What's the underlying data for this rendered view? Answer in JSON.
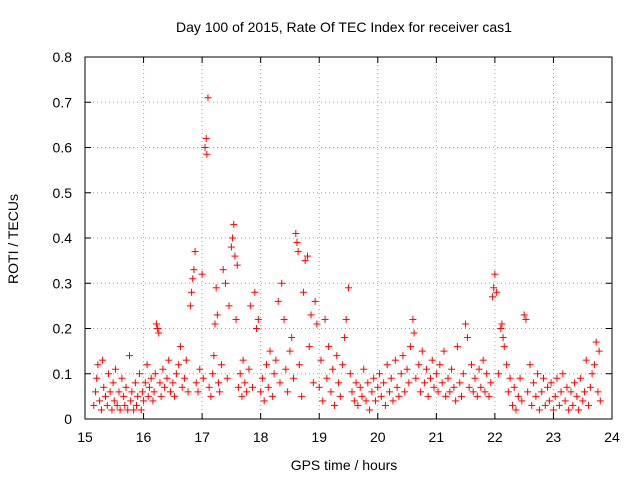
{
  "chart_data": {
    "type": "scatter",
    "title": "Day 100 of 2015, Rate Of TEC Index for receiver cas1",
    "xlabel": "GPS time / hours",
    "ylabel": "ROTI / TECUs",
    "xlim": [
      15,
      24
    ],
    "ylim": [
      0,
      0.8
    ],
    "xticks": [
      "15",
      "16",
      "17",
      "18",
      "19",
      "20",
      "21",
      "22",
      "23",
      "24"
    ],
    "yticks": [
      "0",
      "0.1",
      "0.2",
      "0.3",
      "0.4",
      "0.5",
      "0.6",
      "0.7",
      "0.8"
    ],
    "grid": true,
    "marker": "+",
    "color": "#ff0000",
    "series": [
      {
        "name": "",
        "points": [
          [
            15.15,
            0.03
          ],
          [
            15.18,
            0.06
          ],
          [
            15.2,
            0.09
          ],
          [
            15.22,
            0.12
          ],
          [
            15.25,
            0.04
          ],
          [
            15.28,
            0.02
          ],
          [
            15.3,
            0.13
          ],
          [
            15.32,
            0.07
          ],
          [
            15.35,
            0.05
          ],
          [
            15.38,
            0.03
          ],
          [
            15.4,
            0.1
          ],
          [
            15.43,
            0.06
          ],
          [
            15.46,
            0.02
          ],
          [
            15.48,
            0.08
          ],
          [
            15.5,
            0.04
          ],
          [
            15.52,
            0.11
          ],
          [
            15.55,
            0.03
          ],
          [
            15.58,
            0.06
          ],
          [
            15.6,
            0.02
          ],
          [
            15.63,
            0.09
          ],
          [
            15.66,
            0.05
          ],
          [
            15.68,
            0.03
          ],
          [
            15.7,
            0.07
          ],
          [
            15.73,
            0.02
          ],
          [
            15.76,
            0.14
          ],
          [
            15.78,
            0.04
          ],
          [
            15.8,
            0.06
          ],
          [
            15.83,
            0.02
          ],
          [
            15.86,
            0.08
          ],
          [
            15.88,
            0.03
          ],
          [
            15.9,
            0.05
          ],
          [
            15.93,
            0.1
          ],
          [
            15.96,
            0.02
          ],
          [
            15.98,
            0.06
          ],
          [
            16.0,
            0.04
          ],
          [
            16.03,
            0.08
          ],
          [
            16.06,
            0.12
          ],
          [
            16.08,
            0.05
          ],
          [
            16.1,
            0.07
          ],
          [
            16.13,
            0.09
          ],
          [
            16.16,
            0.04
          ],
          [
            16.18,
            0.06
          ],
          [
            16.2,
            0.1
          ],
          [
            16.22,
            0.21
          ],
          [
            16.24,
            0.2
          ],
          [
            16.26,
            0.19
          ],
          [
            16.28,
            0.08
          ],
          [
            16.3,
            0.05
          ],
          [
            16.33,
            0.11
          ],
          [
            16.36,
            0.07
          ],
          [
            16.4,
            0.09
          ],
          [
            16.43,
            0.13
          ],
          [
            16.46,
            0.06
          ],
          [
            16.5,
            0.08
          ],
          [
            16.53,
            0.05
          ],
          [
            16.56,
            0.1
          ],
          [
            16.6,
            0.12
          ],
          [
            16.63,
            0.16
          ],
          [
            16.66,
            0.07
          ],
          [
            16.7,
            0.09
          ],
          [
            16.73,
            0.13
          ],
          [
            16.76,
            0.06
          ],
          [
            16.8,
            0.25
          ],
          [
            16.82,
            0.28
          ],
          [
            16.84,
            0.31
          ],
          [
            16.86,
            0.33
          ],
          [
            16.88,
            0.37
          ],
          [
            16.9,
            0.08
          ],
          [
            16.93,
            0.06
          ],
          [
            16.96,
            0.11
          ],
          [
            17.0,
            0.32
          ],
          [
            17.02,
            0.09
          ],
          [
            17.05,
            0.6
          ],
          [
            17.07,
            0.62
          ],
          [
            17.08,
            0.585
          ],
          [
            17.1,
            0.71
          ],
          [
            17.12,
            0.07
          ],
          [
            17.15,
            0.05
          ],
          [
            17.18,
            0.1
          ],
          [
            17.2,
            0.14
          ],
          [
            17.22,
            0.21
          ],
          [
            17.24,
            0.29
          ],
          [
            17.26,
            0.23
          ],
          [
            17.28,
            0.08
          ],
          [
            17.3,
            0.06
          ],
          [
            17.33,
            0.12
          ],
          [
            17.36,
            0.33
          ],
          [
            17.4,
            0.3
          ],
          [
            17.43,
            0.09
          ],
          [
            17.46,
            0.25
          ],
          [
            17.5,
            0.38
          ],
          [
            17.52,
            0.4
          ],
          [
            17.54,
            0.43
          ],
          [
            17.56,
            0.36
          ],
          [
            17.58,
            0.22
          ],
          [
            17.6,
            0.34
          ],
          [
            17.62,
            0.07
          ],
          [
            17.65,
            0.1
          ],
          [
            17.68,
            0.05
          ],
          [
            17.7,
            0.13
          ],
          [
            17.73,
            0.08
          ],
          [
            17.76,
            0.06
          ],
          [
            17.8,
            0.11
          ],
          [
            17.83,
            0.25
          ],
          [
            17.86,
            0.07
          ],
          [
            17.9,
            0.28
          ],
          [
            17.93,
            0.2
          ],
          [
            17.96,
            0.22
          ],
          [
            18.0,
            0.06
          ],
          [
            18.03,
            0.09
          ],
          [
            18.06,
            0.04
          ],
          [
            18.1,
            0.12
          ],
          [
            18.13,
            0.07
          ],
          [
            18.16,
            0.15
          ],
          [
            18.2,
            0.05
          ],
          [
            18.23,
            0.1
          ],
          [
            18.26,
            0.13
          ],
          [
            18.3,
            0.26
          ],
          [
            18.33,
            0.08
          ],
          [
            18.36,
            0.3
          ],
          [
            18.4,
            0.22
          ],
          [
            18.43,
            0.11
          ],
          [
            18.46,
            0.06
          ],
          [
            18.5,
            0.15
          ],
          [
            18.53,
            0.18
          ],
          [
            18.56,
            0.09
          ],
          [
            18.6,
            0.41
          ],
          [
            18.62,
            0.39
          ],
          [
            18.64,
            0.37
          ],
          [
            18.66,
            0.12
          ],
          [
            18.7,
            0.05
          ],
          [
            18.73,
            0.28
          ],
          [
            18.76,
            0.35
          ],
          [
            18.8,
            0.36
          ],
          [
            18.83,
            0.16
          ],
          [
            18.86,
            0.23
          ],
          [
            18.9,
            0.08
          ],
          [
            18.93,
            0.26
          ],
          [
            18.96,
            0.21
          ],
          [
            19.0,
            0.07
          ],
          [
            19.03,
            0.13
          ],
          [
            19.06,
            0.04
          ],
          [
            19.1,
            0.22
          ],
          [
            19.13,
            0.09
          ],
          [
            19.16,
            0.16
          ],
          [
            19.2,
            0.06
          ],
          [
            19.23,
            0.11
          ],
          [
            19.26,
            0.03
          ],
          [
            19.3,
            0.14
          ],
          [
            19.33,
            0.08
          ],
          [
            19.36,
            0.05
          ],
          [
            19.4,
            0.12
          ],
          [
            19.43,
            0.18
          ],
          [
            19.46,
            0.22
          ],
          [
            19.5,
            0.29
          ],
          [
            19.53,
            0.1
          ],
          [
            19.56,
            0.06
          ],
          [
            19.6,
            0.04
          ],
          [
            19.63,
            0.08
          ],
          [
            19.66,
            0.03
          ],
          [
            19.7,
            0.07
          ],
          [
            19.73,
            0.05
          ],
          [
            19.76,
            0.11
          ],
          [
            19.8,
            0.04
          ],
          [
            19.83,
            0.08
          ],
          [
            19.86,
            0.02
          ],
          [
            19.9,
            0.06
          ],
          [
            19.93,
            0.09
          ],
          [
            19.96,
            0.04
          ],
          [
            20.0,
            0.07
          ],
          [
            20.03,
            0.1
          ],
          [
            20.06,
            0.05
          ],
          [
            20.1,
            0.08
          ],
          [
            20.13,
            0.03
          ],
          [
            20.16,
            0.12
          ],
          [
            20.2,
            0.06
          ],
          [
            20.23,
            0.09
          ],
          [
            20.26,
            0.04
          ],
          [
            20.3,
            0.13
          ],
          [
            20.33,
            0.07
          ],
          [
            20.36,
            0.05
          ],
          [
            20.4,
            0.1
          ],
          [
            20.43,
            0.14
          ],
          [
            20.46,
            0.06
          ],
          [
            20.5,
            0.11
          ],
          [
            20.53,
            0.08
          ],
          [
            20.56,
            0.16
          ],
          [
            20.6,
            0.22
          ],
          [
            20.62,
            0.19
          ],
          [
            20.65,
            0.09
          ],
          [
            20.7,
            0.12
          ],
          [
            20.73,
            0.06
          ],
          [
            20.76,
            0.15
          ],
          [
            20.8,
            0.08
          ],
          [
            20.83,
            0.11
          ],
          [
            20.86,
            0.05
          ],
          [
            20.9,
            0.09
          ],
          [
            20.93,
            0.13
          ],
          [
            20.96,
            0.07
          ],
          [
            21.0,
            0.1
          ],
          [
            21.03,
            0.06
          ],
          [
            21.06,
            0.12
          ],
          [
            21.1,
            0.08
          ],
          [
            21.13,
            0.15
          ],
          [
            21.16,
            0.05
          ],
          [
            21.2,
            0.09
          ],
          [
            21.23,
            0.06
          ],
          [
            21.26,
            0.11
          ],
          [
            21.3,
            0.07
          ],
          [
            21.33,
            0.04
          ],
          [
            21.36,
            0.16
          ],
          [
            21.4,
            0.08
          ],
          [
            21.43,
            0.05
          ],
          [
            21.46,
            0.1
          ],
          [
            21.5,
            0.21
          ],
          [
            21.53,
            0.18
          ],
          [
            21.56,
            0.07
          ],
          [
            21.6,
            0.12
          ],
          [
            21.63,
            0.06
          ],
          [
            21.66,
            0.09
          ],
          [
            21.7,
            0.05
          ],
          [
            21.73,
            0.11
          ],
          [
            21.76,
            0.07
          ],
          [
            21.8,
            0.13
          ],
          [
            21.83,
            0.06
          ],
          [
            21.86,
            0.1
          ],
          [
            21.9,
            0.05
          ],
          [
            21.93,
            0.08
          ],
          [
            21.96,
            0.27
          ],
          [
            21.98,
            0.29
          ],
          [
            22.0,
            0.32
          ],
          [
            22.03,
            0.28
          ],
          [
            22.06,
            0.1
          ],
          [
            22.1,
            0.2
          ],
          [
            22.12,
            0.21
          ],
          [
            22.14,
            0.18
          ],
          [
            22.16,
            0.16
          ],
          [
            22.2,
            0.12
          ],
          [
            22.23,
            0.06
          ],
          [
            22.26,
            0.09
          ],
          [
            22.3,
            0.03
          ],
          [
            22.33,
            0.07
          ],
          [
            22.36,
            0.02
          ],
          [
            22.4,
            0.05
          ],
          [
            22.43,
            0.09
          ],
          [
            22.46,
            0.04
          ],
          [
            22.5,
            0.23
          ],
          [
            22.53,
            0.22
          ],
          [
            22.56,
            0.06
          ],
          [
            22.6,
            0.12
          ],
          [
            22.63,
            0.03
          ],
          [
            22.66,
            0.08
          ],
          [
            22.7,
            0.05
          ],
          [
            22.73,
            0.1
          ],
          [
            22.76,
            0.02
          ],
          [
            22.8,
            0.06
          ],
          [
            22.83,
            0.09
          ],
          [
            22.86,
            0.03
          ],
          [
            22.9,
            0.07
          ],
          [
            22.93,
            0.04
          ],
          [
            22.96,
            0.08
          ],
          [
            23.0,
            0.02
          ],
          [
            23.03,
            0.05
          ],
          [
            23.06,
            0.09
          ],
          [
            23.1,
            0.03
          ],
          [
            23.13,
            0.06
          ],
          [
            23.16,
            0.1
          ],
          [
            23.2,
            0.04
          ],
          [
            23.23,
            0.07
          ],
          [
            23.26,
            0.02
          ],
          [
            23.3,
            0.06
          ],
          [
            23.33,
            0.03
          ],
          [
            23.36,
            0.08
          ],
          [
            23.4,
            0.05
          ],
          [
            23.43,
            0.02
          ],
          [
            23.46,
            0.09
          ],
          [
            23.5,
            0.04
          ],
          [
            23.53,
            0.06
          ],
          [
            23.56,
            0.13
          ],
          [
            23.6,
            0.03
          ],
          [
            23.63,
            0.07
          ],
          [
            23.66,
            0.1
          ],
          [
            23.7,
            0.12
          ],
          [
            23.73,
            0.17
          ],
          [
            23.76,
            0.06
          ],
          [
            23.78,
            0.15
          ],
          [
            23.8,
            0.04
          ]
        ]
      }
    ]
  }
}
